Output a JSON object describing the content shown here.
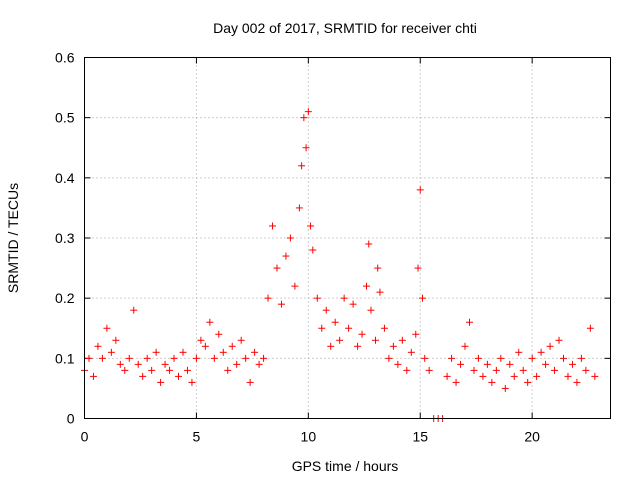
{
  "chart_data": {
    "type": "scatter",
    "title": "Day 002 of 2017, SRMTID for receiver chti",
    "xlabel": "GPS time / hours",
    "ylabel": "SRMTID / TECUs",
    "xlim": [
      0,
      23.5
    ],
    "ylim": [
      0,
      0.6
    ],
    "x_ticks": [
      "0",
      "5",
      "10",
      "15",
      "20"
    ],
    "y_ticks": [
      "0",
      "0.1",
      "0.2",
      "0.3",
      "0.4",
      "0.5",
      "0.6"
    ],
    "grid": true,
    "marker": "plus",
    "color": "#ff0000",
    "series": [
      {
        "name": "SRMTID",
        "x": [
          0.0,
          0.2,
          0.4,
          0.6,
          0.8,
          1.0,
          1.2,
          1.4,
          1.6,
          1.8,
          2.0,
          2.2,
          2.4,
          2.6,
          2.8,
          3.0,
          3.2,
          3.4,
          3.6,
          3.8,
          4.0,
          4.2,
          4.4,
          4.6,
          4.8,
          5.0,
          5.2,
          5.4,
          5.6,
          5.8,
          6.0,
          6.2,
          6.4,
          6.6,
          6.8,
          7.0,
          7.2,
          7.4,
          7.6,
          7.8,
          8.0,
          8.2,
          8.4,
          8.6,
          8.8,
          9.0,
          9.2,
          9.4,
          9.6,
          9.7,
          9.8,
          9.9,
          10.0,
          10.1,
          10.2,
          10.4,
          10.6,
          10.8,
          11.0,
          11.2,
          11.4,
          11.6,
          11.8,
          12.0,
          12.2,
          12.4,
          12.6,
          12.7,
          12.8,
          13.0,
          13.1,
          13.2,
          13.4,
          13.6,
          13.8,
          14.0,
          14.2,
          14.4,
          14.6,
          14.8,
          14.9,
          15.0,
          15.1,
          15.2,
          15.4,
          15.6,
          15.8,
          16.0,
          16.2,
          16.4,
          16.6,
          16.8,
          17.0,
          17.2,
          17.4,
          17.6,
          17.8,
          18.0,
          18.2,
          18.4,
          18.6,
          18.8,
          19.0,
          19.2,
          19.4,
          19.6,
          19.8,
          20.0,
          20.2,
          20.4,
          20.6,
          20.8,
          21.0,
          21.2,
          21.4,
          21.6,
          21.8,
          22.0,
          22.2,
          22.4,
          22.6,
          22.8
        ],
        "y": [
          0.08,
          0.1,
          0.07,
          0.12,
          0.1,
          0.15,
          0.11,
          0.13,
          0.09,
          0.08,
          0.1,
          0.18,
          0.09,
          0.07,
          0.1,
          0.08,
          0.11,
          0.06,
          0.09,
          0.08,
          0.1,
          0.07,
          0.11,
          0.08,
          0.06,
          0.1,
          0.13,
          0.12,
          0.16,
          0.1,
          0.14,
          0.11,
          0.08,
          0.12,
          0.09,
          0.13,
          0.1,
          0.06,
          0.11,
          0.09,
          0.1,
          0.2,
          0.32,
          0.25,
          0.19,
          0.27,
          0.3,
          0.22,
          0.35,
          0.42,
          0.5,
          0.45,
          0.51,
          0.32,
          0.28,
          0.2,
          0.15,
          0.18,
          0.12,
          0.16,
          0.13,
          0.2,
          0.15,
          0.19,
          0.12,
          0.14,
          0.22,
          0.29,
          0.18,
          0.13,
          0.25,
          0.21,
          0.15,
          0.1,
          0.12,
          0.09,
          0.13,
          0.08,
          0.11,
          0.14,
          0.25,
          0.38,
          0.2,
          0.1,
          0.08,
          0.0,
          0.0,
          0.0,
          0.07,
          0.1,
          0.06,
          0.09,
          0.12,
          0.16,
          0.08,
          0.1,
          0.07,
          0.09,
          0.06,
          0.08,
          0.1,
          0.05,
          0.09,
          0.07,
          0.11,
          0.08,
          0.06,
          0.1,
          0.07,
          0.11,
          0.09,
          0.12,
          0.08,
          0.13,
          0.1,
          0.07,
          0.09,
          0.06,
          0.1,
          0.08,
          0.15,
          0.07
        ]
      }
    ]
  }
}
